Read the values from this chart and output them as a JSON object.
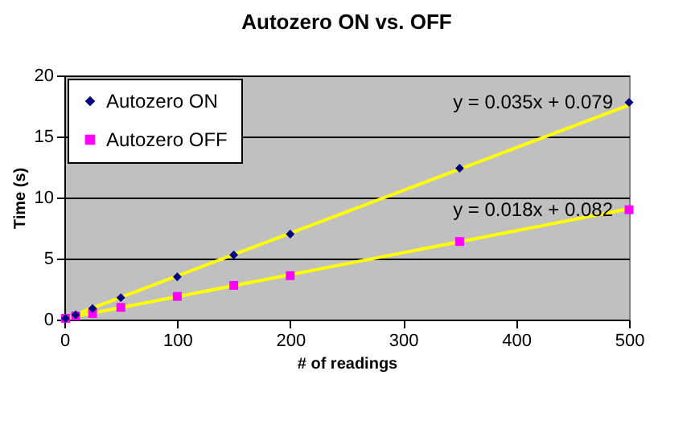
{
  "chart_data": {
    "type": "scatter",
    "title": "Autozero ON vs. OFF",
    "xlabel": "# of readings",
    "ylabel": "Time (s)",
    "xlim": [
      0,
      500
    ],
    "xticks": [
      0,
      100,
      200,
      300,
      400,
      500
    ],
    "ylim": [
      0,
      20
    ],
    "yticks": [
      0,
      5,
      10,
      15,
      20
    ],
    "grid": "y",
    "legend": "top left",
    "series": [
      {
        "type": "line",
        "color": "#ffff00",
        "x": [
          0,
          500
        ],
        "values": [
          0.079,
          17.579
        ]
      },
      {
        "type": "line",
        "color": "#ffff00",
        "x": [
          0,
          500
        ],
        "values": [
          0.082,
          9.082
        ]
      },
      {
        "name": "Autozero ON",
        "color": "#000080",
        "marker": "diamond",
        "x": [
          1,
          10,
          25,
          50,
          100,
          150,
          200,
          350,
          500
        ],
        "values": [
          0.1,
          0.4,
          0.9,
          1.8,
          3.5,
          5.3,
          7.0,
          12.4,
          17.8
        ]
      },
      {
        "name": "Autozero OFF",
        "color": "#ff00ff",
        "marker": "square",
        "x": [
          1,
          10,
          25,
          50,
          100,
          150,
          200,
          350,
          500
        ],
        "values": [
          0.1,
          0.3,
          0.5,
          1.0,
          1.9,
          2.8,
          3.6,
          6.4,
          9.0
        ]
      }
    ],
    "annotations": [
      {
        "text": "y = 0.035x + 0.079",
        "x": 500,
        "y": 17.8
      },
      {
        "text": "y = 0.018x + 0.082",
        "x": 500,
        "y": 9.0
      }
    ]
  }
}
